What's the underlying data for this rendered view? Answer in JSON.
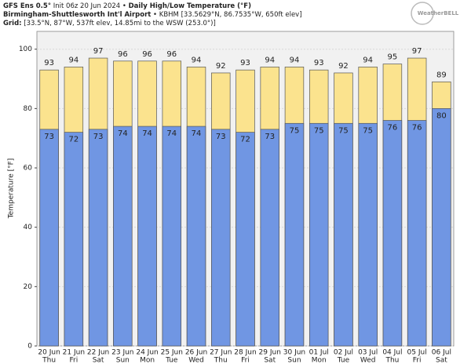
{
  "chart_data": {
    "type": "bar",
    "header": [
      [
        "GFS Ens 0.5°",
        " Init 06z 20 Jun 2024 • ",
        "Daily High/Low Temperature (°F)"
      ],
      [
        "Birmingham-Shuttlesworth Int'l Airport",
        " • KBHM [33.5629°N, 86.7535°W, 650ft elev]"
      ],
      [
        "Grid:",
        " [33.5°N, 87°W, 537ft elev, 14.85mi to the WSW (253.0°)]"
      ]
    ],
    "logo": "WeatherBELL",
    "y_label": "Temperature [°F]",
    "categories": [
      "20 Jun",
      "21 Jun",
      "22 Jun",
      "23 Jun",
      "24 Jun",
      "25 Jun",
      "26 Jun",
      "27 Jun",
      "28 Jun",
      "29 Jun",
      "30 Jun",
      "01 Jul",
      "02 Jul",
      "03 Jul",
      "04 Jul",
      "05 Jul",
      "06 Jul"
    ],
    "weekdays": [
      "Thu",
      "Fri",
      "Sat",
      "Sun",
      "Mon",
      "Tue",
      "Wed",
      "Thu",
      "Fri",
      "Sat",
      "Sun",
      "Mon",
      "Tue",
      "Wed",
      "Thu",
      "Fri",
      "Sat"
    ],
    "series": [
      {
        "color": "#fbe38e",
        "values": [
          93,
          94,
          97,
          96,
          96,
          96,
          94,
          92,
          93,
          94,
          94,
          93,
          92,
          94,
          95,
          97,
          89
        ]
      },
      {
        "color": "#7096e3",
        "values": [
          73,
          72,
          73,
          74,
          74,
          74,
          74,
          73,
          72,
          73,
          75,
          75,
          75,
          75,
          76,
          76,
          80
        ]
      }
    ],
    "ylim": [
      0,
      106
    ],
    "yticks": [
      0,
      20,
      40,
      60,
      80,
      100
    ],
    "grid": true
  }
}
